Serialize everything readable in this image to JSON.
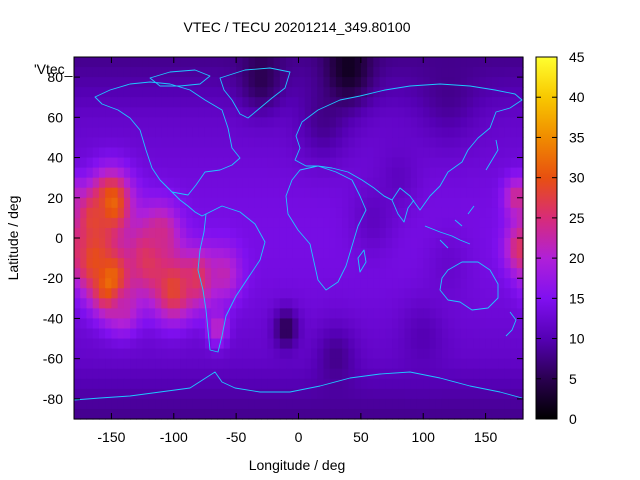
{
  "chart_data": {
    "type": "heatmap",
    "title": "VTEC / TECU 20201214_349.80100",
    "xlabel": "Longitude / deg",
    "ylabel": "Latitude / deg",
    "legend_entry": "'Vtec_",
    "xlim": [
      -180,
      180
    ],
    "ylim": [
      -90,
      90
    ],
    "xticks": [
      -150,
      -100,
      -50,
      0,
      50,
      100,
      150
    ],
    "yticks": [
      -80,
      -60,
      -40,
      -20,
      0,
      20,
      40,
      60,
      80
    ],
    "colorbar": {
      "min": 0,
      "max": 45,
      "ticks": [
        0,
        5,
        10,
        15,
        20,
        25,
        30,
        35,
        40,
        45
      ]
    },
    "grid": false,
    "legend_placement": "top-left",
    "colormap": [
      "#000000",
      "#2a0050",
      "#5500b4",
      "#8010f0",
      "#b020d8",
      "#d82c78",
      "#e85010",
      "#f08c00",
      "#f8c800",
      "#ffff30"
    ],
    "coastline_color": "#1ec8ff",
    "features": [
      {
        "lon": -150,
        "lat": 17,
        "value": 33,
        "radius": 16
      },
      {
        "lon": -165,
        "lat": 10,
        "value": 28,
        "radius": 14
      },
      {
        "lon": -150,
        "lat": -22,
        "value": 36,
        "radius": 16
      },
      {
        "lon": -165,
        "lat": -10,
        "value": 30,
        "radius": 16
      },
      {
        "lon": -120,
        "lat": -10,
        "value": 27,
        "radius": 20
      },
      {
        "lon": -100,
        "lat": -25,
        "value": 29,
        "radius": 16
      },
      {
        "lon": -80,
        "lat": -20,
        "value": 27,
        "radius": 14
      },
      {
        "lon": -60,
        "lat": -18,
        "value": 22,
        "radius": 14
      },
      {
        "lon": -110,
        "lat": 2,
        "value": 24,
        "radius": 14
      },
      {
        "lon": -65,
        "lat": -45,
        "value": 22,
        "radius": 8
      },
      {
        "lon": -140,
        "lat": -35,
        "value": 22,
        "radius": 12
      },
      {
        "lon": 178,
        "lat": -5,
        "value": 26,
        "radius": 12
      },
      {
        "lon": 175,
        "lat": 20,
        "value": 24,
        "radius": 10
      },
      {
        "lon": 20,
        "lat": 60,
        "value": 8,
        "radius": 20
      },
      {
        "lon": 40,
        "lat": 85,
        "value": 2,
        "radius": 18
      },
      {
        "lon": -30,
        "lat": 80,
        "value": 5,
        "radius": 16
      },
      {
        "lon": 120,
        "lat": 75,
        "value": 8,
        "radius": 24
      },
      {
        "lon": -10,
        "lat": -45,
        "value": 5,
        "radius": 10
      },
      {
        "lon": 30,
        "lat": -60,
        "value": 8,
        "radius": 16
      },
      {
        "lon": 100,
        "lat": -50,
        "value": 10,
        "radius": 18
      },
      {
        "lon": 60,
        "lat": 10,
        "value": 11,
        "radius": 18
      },
      {
        "lon": 80,
        "lat": 30,
        "value": 11,
        "radius": 16
      },
      {
        "lon": 120,
        "lat": -15,
        "value": 12,
        "radius": 18
      }
    ]
  }
}
